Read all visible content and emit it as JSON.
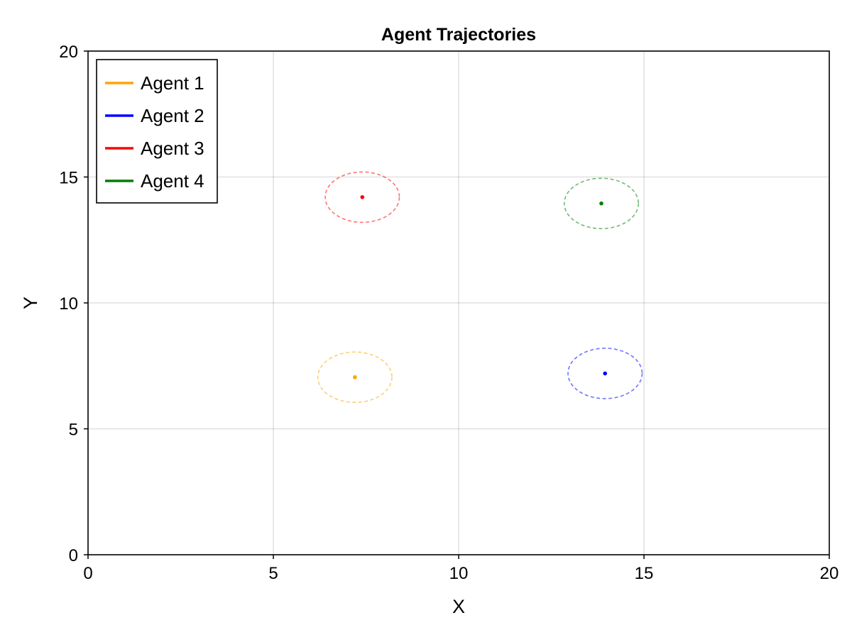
{
  "chart_data": {
    "type": "scatter",
    "title": "Agent Trajectories",
    "xlabel": "X",
    "ylabel": "Y",
    "xlim": [
      0,
      20
    ],
    "ylim": [
      0,
      20
    ],
    "xticks": [
      0,
      5,
      10,
      15,
      20
    ],
    "yticks": [
      0,
      5,
      10,
      15,
      20
    ],
    "xtick_labels": [
      "0",
      "5",
      "10",
      "15",
      "20"
    ],
    "ytick_labels": [
      "0",
      "5",
      "10",
      "15",
      "20"
    ],
    "grid": true,
    "legend_position": "top-left",
    "series": [
      {
        "name": "Agent 1",
        "color": "#FFA500",
        "x": [
          7.2
        ],
        "y": [
          7.05
        ],
        "radius": 1.0
      },
      {
        "name": "Agent 2",
        "color": "#0000FF",
        "x": [
          13.95
        ],
        "y": [
          7.2
        ],
        "radius": 1.0
      },
      {
        "name": "Agent 3",
        "color": "#FF0000",
        "x": [
          7.4
        ],
        "y": [
          14.2
        ],
        "radius": 1.0
      },
      {
        "name": "Agent 4",
        "color": "#008000",
        "x": [
          13.85
        ],
        "y": [
          13.95
        ],
        "radius": 1.0
      }
    ]
  }
}
